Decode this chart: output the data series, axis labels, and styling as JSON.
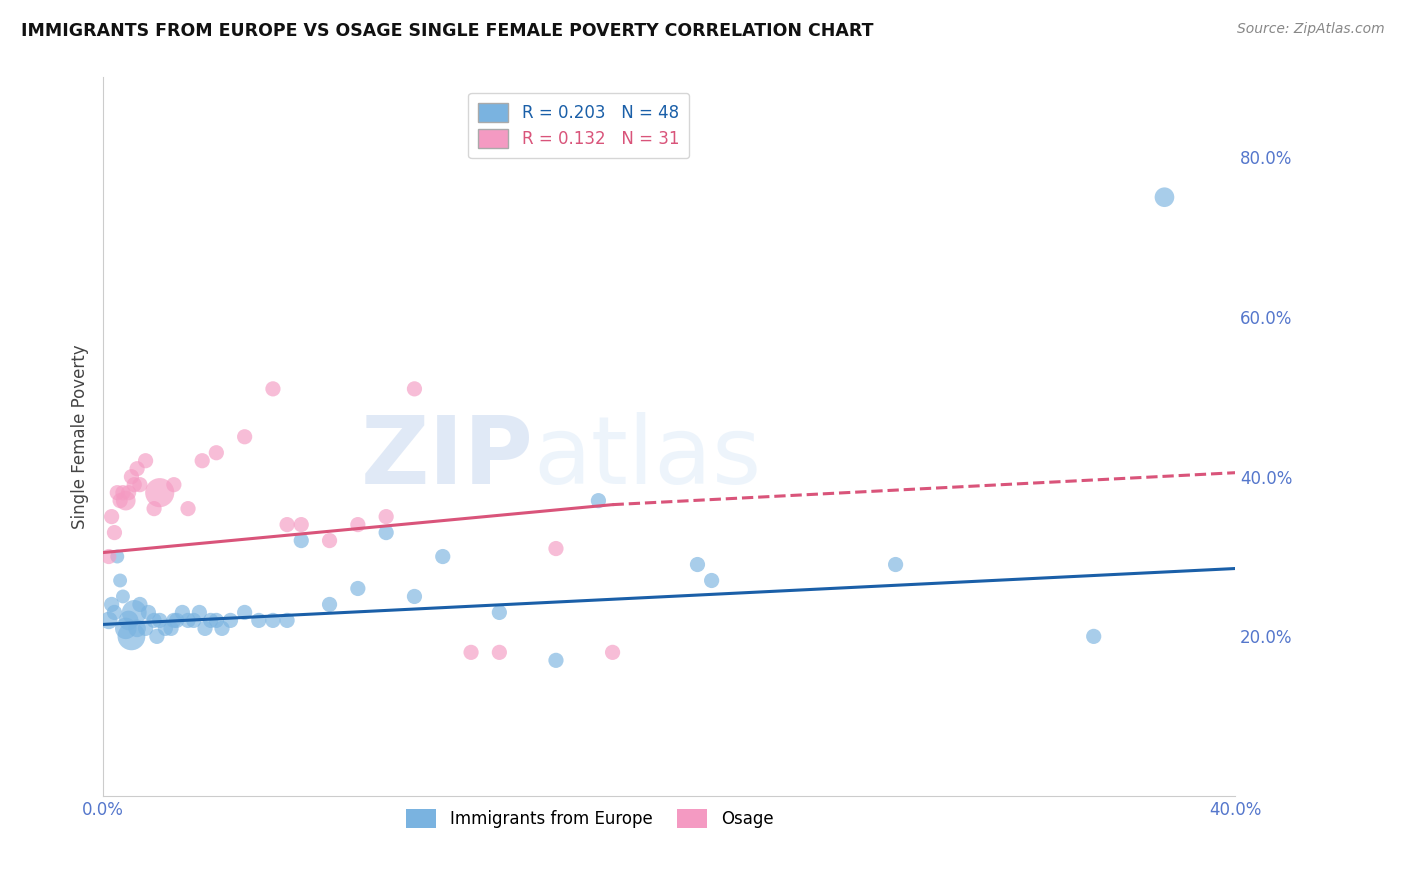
{
  "title": "IMMIGRANTS FROM EUROPE VS OSAGE SINGLE FEMALE POVERTY CORRELATION CHART",
  "source": "Source: ZipAtlas.com",
  "ylabel": "Single Female Poverty",
  "xlim": [
    0.0,
    0.4
  ],
  "ylim": [
    0.0,
    0.9
  ],
  "x_ticks": [
    0.0,
    0.1,
    0.2,
    0.3,
    0.4
  ],
  "x_tick_labels": [
    "0.0%",
    "",
    "",
    "",
    "40.0%"
  ],
  "y_ticks_right": [
    0.2,
    0.4,
    0.6,
    0.8
  ],
  "y_tick_labels_right": [
    "20.0%",
    "40.0%",
    "60.0%",
    "80.0%"
  ],
  "blue_R": 0.203,
  "blue_N": 48,
  "pink_R": 0.132,
  "pink_N": 31,
  "blue_color": "#7ab3e0",
  "pink_color": "#f49ac2",
  "blue_line_color": "#1a5fa8",
  "pink_line_color": "#d9547a",
  "watermark_zip": "ZIP",
  "watermark_atlas": "atlas",
  "blue_x": [
    0.002,
    0.003,
    0.004,
    0.005,
    0.006,
    0.007,
    0.008,
    0.009,
    0.01,
    0.011,
    0.012,
    0.013,
    0.015,
    0.016,
    0.018,
    0.019,
    0.02,
    0.022,
    0.024,
    0.025,
    0.026,
    0.028,
    0.03,
    0.032,
    0.034,
    0.036,
    0.038,
    0.04,
    0.042,
    0.045,
    0.05,
    0.055,
    0.06,
    0.065,
    0.07,
    0.08,
    0.09,
    0.1,
    0.11,
    0.12,
    0.14,
    0.16,
    0.175,
    0.21,
    0.215,
    0.28,
    0.35,
    0.375
  ],
  "blue_y": [
    0.22,
    0.24,
    0.23,
    0.3,
    0.27,
    0.25,
    0.21,
    0.22,
    0.2,
    0.23,
    0.21,
    0.24,
    0.21,
    0.23,
    0.22,
    0.2,
    0.22,
    0.21,
    0.21,
    0.22,
    0.22,
    0.23,
    0.22,
    0.22,
    0.23,
    0.21,
    0.22,
    0.22,
    0.21,
    0.22,
    0.23,
    0.22,
    0.22,
    0.22,
    0.32,
    0.24,
    0.26,
    0.33,
    0.25,
    0.3,
    0.23,
    0.17,
    0.37,
    0.29,
    0.27,
    0.29,
    0.2,
    0.75
  ],
  "blue_size": [
    40,
    30,
    30,
    25,
    25,
    25,
    60,
    50,
    100,
    80,
    40,
    30,
    30,
    30,
    30,
    30,
    30,
    30,
    30,
    30,
    30,
    30,
    30,
    30,
    30,
    30,
    30,
    30,
    30,
    30,
    30,
    30,
    30,
    30,
    30,
    30,
    30,
    30,
    30,
    30,
    30,
    30,
    30,
    30,
    30,
    30,
    30,
    50
  ],
  "pink_x": [
    0.002,
    0.003,
    0.004,
    0.005,
    0.006,
    0.007,
    0.008,
    0.009,
    0.01,
    0.011,
    0.012,
    0.013,
    0.015,
    0.018,
    0.02,
    0.025,
    0.03,
    0.035,
    0.04,
    0.05,
    0.06,
    0.065,
    0.07,
    0.08,
    0.09,
    0.1,
    0.11,
    0.13,
    0.14,
    0.16,
    0.18
  ],
  "pink_y": [
    0.3,
    0.35,
    0.33,
    0.38,
    0.37,
    0.38,
    0.37,
    0.38,
    0.4,
    0.39,
    0.41,
    0.39,
    0.42,
    0.36,
    0.38,
    0.39,
    0.36,
    0.42,
    0.43,
    0.45,
    0.51,
    0.34,
    0.34,
    0.32,
    0.34,
    0.35,
    0.51,
    0.18,
    0.18,
    0.31,
    0.18
  ],
  "pink_size": [
    30,
    30,
    30,
    30,
    30,
    30,
    50,
    30,
    30,
    30,
    30,
    30,
    30,
    30,
    110,
    30,
    30,
    30,
    30,
    30,
    30,
    30,
    30,
    30,
    30,
    30,
    30,
    30,
    30,
    30,
    30
  ],
  "blue_trend_start_y": 0.215,
  "blue_trend_end_y": 0.285,
  "pink_trend_start_y": 0.305,
  "pink_trend_solid_end_x": 0.18,
  "pink_trend_solid_end_y": 0.365,
  "pink_trend_dash_end_y": 0.405
}
